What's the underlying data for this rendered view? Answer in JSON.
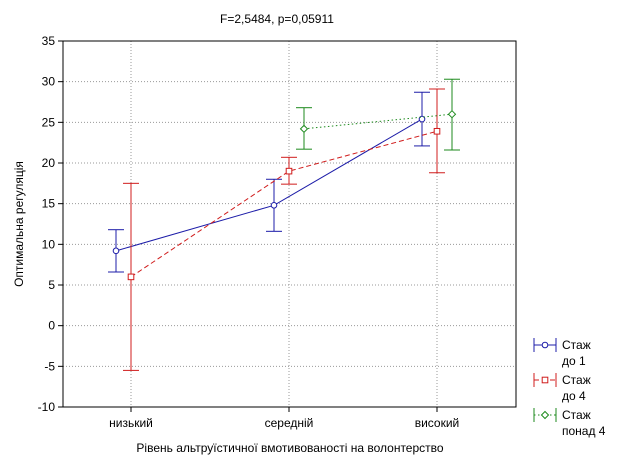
{
  "chart_data": {
    "type": "line",
    "title": "F=2,5484, p=0,05911",
    "xlabel": "Рівень альтруїстичної вмотивованості на волонтерство",
    "ylabel": "Оптимальна регуляція",
    "categories": [
      "низький",
      "середній",
      "високий"
    ],
    "ylim": [
      -10,
      35
    ],
    "yticks": [
      -10,
      -5,
      0,
      5,
      10,
      15,
      20,
      25,
      30,
      35
    ],
    "grid": true,
    "legend_position": "bottom-right",
    "series": [
      {
        "name": "Стаж до 1",
        "legend_lines": [
          "Стаж",
          "до 1"
        ],
        "color": "#1c1ca8",
        "line_style": "solid",
        "marker": "circle",
        "means": [
          9.2,
          14.8,
          25.4
        ],
        "lower": [
          6.6,
          11.6,
          22.1
        ],
        "upper": [
          11.8,
          18.0,
          28.7
        ]
      },
      {
        "name": "Стаж до 4",
        "legend_lines": [
          "Стаж",
          "до 4"
        ],
        "color": "#d01c1c",
        "line_style": "dashed",
        "marker": "square",
        "means": [
          6.0,
          19.0,
          23.9
        ],
        "lower": [
          -5.5,
          17.4,
          18.8
        ],
        "upper": [
          17.5,
          20.7,
          29.1
        ]
      },
      {
        "name": "Стаж понад 4",
        "legend_lines": [
          "Стаж",
          "понад 4"
        ],
        "color": "#1c8a1c",
        "line_style": "dotted",
        "marker": "diamond",
        "means": [
          null,
          24.2,
          26.0
        ],
        "lower": [
          null,
          21.7,
          21.6
        ],
        "upper": [
          null,
          26.8,
          30.3
        ]
      }
    ]
  }
}
